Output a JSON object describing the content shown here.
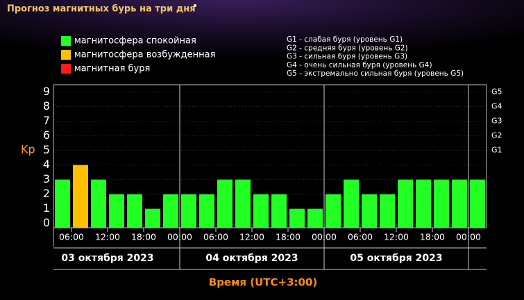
{
  "chart_data": {
    "type": "bar",
    "title": "Прогноз магнитных бурь на три дня",
    "legend": [
      {
        "label": "магнитосфера спокойная",
        "color": "#22ff22"
      },
      {
        "label": "магнитосфера возбужденная",
        "color": "#ffc000"
      },
      {
        "label": "магнитная буря",
        "color": "#ff1a1a"
      }
    ],
    "storm_scale": [
      "G1 - слабая буря (уровень G1)",
      "G2 - средняя буря (уровень G2)",
      "G3 - сильная буря (уровень G3)",
      "G4 - очень сильная буря (уровень G4)",
      "G5 - экстремально сильная буря (уровень G5)"
    ],
    "y_label": "Kp",
    "x_label": "Время (UTC+3:00)",
    "dates": [
      "03 октября 2023",
      "04 октября 2023",
      "05 октября 2023"
    ],
    "x": [
      3,
      6,
      9,
      12,
      15,
      18,
      21,
      24,
      27,
      30,
      33,
      36,
      39,
      42,
      45,
      48,
      51,
      54,
      57,
      60,
      63,
      66,
      69,
      72
    ],
    "values": [
      3,
      4,
      3,
      2,
      2,
      1,
      2,
      2,
      2,
      3,
      3,
      2,
      2,
      1,
      1,
      2,
      3,
      2,
      2,
      3,
      3,
      3,
      3,
      3
    ],
    "colors": [
      "#22ff22",
      "#ffc000",
      "#22ff22",
      "#22ff22",
      "#22ff22",
      "#22ff22",
      "#22ff22",
      "#22ff22",
      "#22ff22",
      "#22ff22",
      "#22ff22",
      "#22ff22",
      "#22ff22",
      "#22ff22",
      "#22ff22",
      "#22ff22",
      "#22ff22",
      "#22ff22",
      "#22ff22",
      "#22ff22",
      "#22ff22",
      "#22ff22",
      "#22ff22",
      "#22ff22"
    ],
    "bar_width": 3,
    "xlim": [
      3,
      75
    ],
    "xticks": [
      {
        "value": 6,
        "label": "06:00"
      },
      {
        "value": 12,
        "label": "12:00"
      },
      {
        "value": 18,
        "label": "18:00"
      },
      {
        "value": 24,
        "label": "00:00"
      },
      {
        "value": 30,
        "label": "06:00"
      },
      {
        "value": 36,
        "label": "12:00"
      },
      {
        "value": 42,
        "label": "18:00"
      },
      {
        "value": 48,
        "label": "00:00"
      },
      {
        "value": 54,
        "label": "06:00"
      },
      {
        "value": 60,
        "label": "12:00"
      },
      {
        "value": 66,
        "label": "18:00"
      },
      {
        "value": 72,
        "label": "00:00"
      }
    ],
    "day_separators": [
      24,
      48,
      72
    ],
    "ylim": [
      -0.3,
      9.5
    ],
    "yticks": [
      0,
      1,
      2,
      3,
      4,
      5,
      6,
      7,
      8,
      9
    ],
    "y2lim": [
      -0.3,
      9.5
    ],
    "y2ticks": [
      {
        "value": 5,
        "label": "G1"
      },
      {
        "value": 6,
        "label": "G2"
      },
      {
        "value": 7,
        "label": "G3"
      },
      {
        "value": 8,
        "label": "G4"
      },
      {
        "value": 9,
        "label": "G5"
      }
    ],
    "grid": true
  }
}
